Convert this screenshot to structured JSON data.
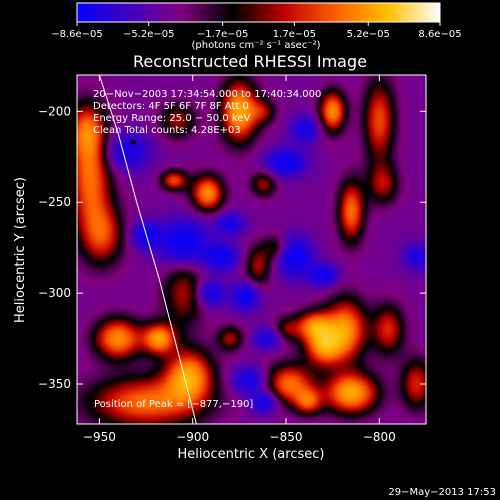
{
  "chart_data": {
    "type": "heatmap",
    "title": "Reconstructed RHESSI Image",
    "xlabel": "Heliocentric X (arcsec)",
    "ylabel": "Heliocentric Y (arcsec)",
    "xlim": [
      -962,
      -775
    ],
    "ylim": [
      -372,
      -180
    ],
    "x_ticks": [
      -950,
      -900,
      -850,
      -800
    ],
    "y_ticks": [
      -350,
      -300,
      -250,
      -200
    ],
    "colorbar": {
      "range": [
        -8.6e-05,
        8.6e-05
      ],
      "tick_values": [
        -8.6e-05,
        -5.2e-05,
        -1.7e-05,
        1.7e-05,
        5.2e-05,
        8.6e-05
      ],
      "tick_labels": [
        "−8.6e−05",
        "−5.2e−05",
        "−1.7e−05",
        "1.7e−05",
        "5.2e−05",
        "8.6e−05"
      ],
      "unit_label": "(photons cm⁻² s⁻¹ asec⁻²)",
      "colors": [
        "#0000ff",
        "#4000c0",
        "#800080",
        "#000000",
        "#c00000",
        "#ff6000",
        "#ffc000",
        "#ffffff"
      ]
    },
    "annotations": [
      "20−Nov−2003 17:34:54.000 to 17:40:34.000",
      "Detectors: 4F 5F 6F 7F 8F  Att 0",
      "Energy Range: 25.0 − 50.0 keV",
      "Clean    Total counts: 4.28E+03"
    ],
    "peak_label": "Position of Peak = [−877,−190]",
    "peak": {
      "x": -877,
      "y": -190
    },
    "centroid_marker": {
      "x": -932,
      "y": -217
    },
    "limb_curve": [
      {
        "x": -950,
        "y": -180
      },
      {
        "x": -940,
        "y": -212
      },
      {
        "x": -930,
        "y": -250
      },
      {
        "x": -918,
        "y": -292
      },
      {
        "x": -908,
        "y": -332
      },
      {
        "x": -898,
        "y": -372
      }
    ],
    "blobs": [
      {
        "x": -955,
        "y": -235,
        "sx": 8,
        "sy": 22,
        "v": 0.8
      },
      {
        "x": -957,
        "y": -210,
        "sx": 7,
        "sy": 10,
        "v": 0.5
      },
      {
        "x": -948,
        "y": -268,
        "sx": 8,
        "sy": 12,
        "v": 0.6
      },
      {
        "x": -940,
        "y": -325,
        "sx": 9,
        "sy": 8,
        "v": 0.9
      },
      {
        "x": -918,
        "y": -325,
        "sx": 6,
        "sy": 6,
        "v": 0.9
      },
      {
        "x": -925,
        "y": -360,
        "sx": 22,
        "sy": 10,
        "v": 0.8
      },
      {
        "x": -905,
        "y": -300,
        "sx": 8,
        "sy": 14,
        "v": 0.5
      },
      {
        "x": -902,
        "y": -345,
        "sx": 9,
        "sy": 10,
        "v": 0.9
      },
      {
        "x": -908,
        "y": -205,
        "sx": 7,
        "sy": 7,
        "v": 0.5
      },
      {
        "x": -910,
        "y": -238,
        "sx": 5,
        "sy": 4,
        "v": 0.7
      },
      {
        "x": -875,
        "y": -200,
        "sx": 7,
        "sy": 12,
        "v": 1.0
      },
      {
        "x": -892,
        "y": -245,
        "sx": 6,
        "sy": 7,
        "v": 0.9
      },
      {
        "x": -862,
        "y": -240,
        "sx": 5,
        "sy": 5,
        "v": 0.5
      },
      {
        "x": -862,
        "y": -200,
        "sx": 5,
        "sy": 5,
        "v": 0.4
      },
      {
        "x": -855,
        "y": -275,
        "sx": 5,
        "sy": 5,
        "v": 0.4
      },
      {
        "x": -825,
        "y": -200,
        "sx": 5,
        "sy": 8,
        "v": 0.9
      },
      {
        "x": -800,
        "y": -205,
        "sx": 6,
        "sy": 16,
        "v": 0.7
      },
      {
        "x": -815,
        "y": -255,
        "sx": 5,
        "sy": 12,
        "v": 0.8
      },
      {
        "x": -798,
        "y": -240,
        "sx": 6,
        "sy": 8,
        "v": 0.5
      },
      {
        "x": -830,
        "y": -330,
        "sx": 7,
        "sy": 7,
        "v": 0.8
      },
      {
        "x": -818,
        "y": -320,
        "sx": 8,
        "sy": 12,
        "v": 0.9
      },
      {
        "x": -815,
        "y": -355,
        "sx": 10,
        "sy": 8,
        "v": 1.0
      },
      {
        "x": -848,
        "y": -350,
        "sx": 9,
        "sy": 8,
        "v": 0.8
      },
      {
        "x": -835,
        "y": -318,
        "sx": 7,
        "sy": 6,
        "v": 0.8
      },
      {
        "x": -795,
        "y": -320,
        "sx": 6,
        "sy": 10,
        "v": 0.6
      },
      {
        "x": -780,
        "y": -350,
        "sx": 6,
        "sy": 10,
        "v": 0.6
      },
      {
        "x": -865,
        "y": -285,
        "sx": 5,
        "sy": 8,
        "v": 0.5
      },
      {
        "x": -850,
        "y": -320,
        "sx": 5,
        "sy": 5,
        "v": 0.4
      },
      {
        "x": -880,
        "y": -325,
        "sx": 5,
        "sy": 5,
        "v": 0.5
      },
      {
        "x": -838,
        "y": -360,
        "sx": 5,
        "sy": 5,
        "v": 0.6
      },
      {
        "x": -905,
        "y": -272,
        "sx": 9,
        "sy": 8,
        "v": -1.0
      },
      {
        "x": -845,
        "y": -280,
        "sx": 6,
        "sy": 7,
        "v": -1.0
      },
      {
        "x": -885,
        "y": -280,
        "sx": 6,
        "sy": 5,
        "v": -0.85
      },
      {
        "x": -872,
        "y": -302,
        "sx": 5,
        "sy": 5,
        "v": -0.85
      },
      {
        "x": -850,
        "y": -228,
        "sx": 7,
        "sy": 5,
        "v": -0.9
      },
      {
        "x": -830,
        "y": -290,
        "sx": 5,
        "sy": 4,
        "v": -0.85
      },
      {
        "x": -862,
        "y": -360,
        "sx": 5,
        "sy": 4,
        "v": -0.75
      },
      {
        "x": -935,
        "y": -222,
        "sx": 8,
        "sy": 7,
        "v": -0.7
      },
      {
        "x": -925,
        "y": -268,
        "sx": 5,
        "sy": 5,
        "v": -0.8
      },
      {
        "x": -880,
        "y": -262,
        "sx": 5,
        "sy": 4,
        "v": -0.7
      },
      {
        "x": -890,
        "y": -300,
        "sx": 5,
        "sy": 5,
        "v": -0.7
      },
      {
        "x": -870,
        "y": -348,
        "sx": 6,
        "sy": 5,
        "v": -0.7
      },
      {
        "x": -840,
        "y": -210,
        "sx": 5,
        "sy": 5,
        "v": -0.7
      },
      {
        "x": -780,
        "y": -280,
        "sx": 5,
        "sy": 5,
        "v": -0.6
      },
      {
        "x": -860,
        "y": -325,
        "sx": 5,
        "sy": 4,
        "v": -0.6
      }
    ]
  },
  "footer": {
    "timestamp": "29−May−2013 17:53"
  }
}
